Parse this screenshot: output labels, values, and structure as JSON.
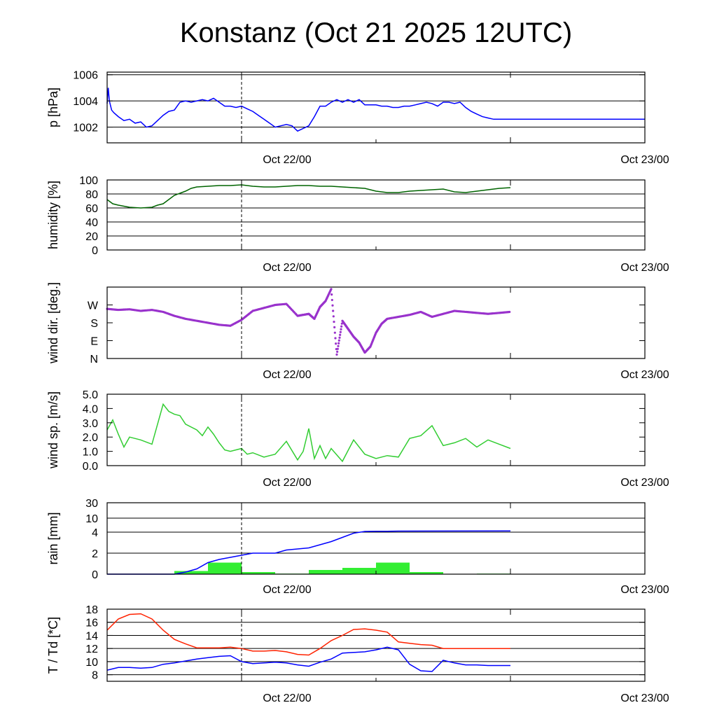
{
  "title": "Konstanz (Oct 21 2025 12UTC)",
  "chart_data": [
    {
      "type": "line",
      "ylabel": "p [hPa]",
      "xlim": [
        -12,
        36
      ],
      "xticks": [
        "Oct 22/00",
        "Oct 23/00"
      ],
      "ylim": [
        1000.8,
        1006.2
      ],
      "yticks": [
        "1006",
        "1004",
        "1002"
      ],
      "grid": true,
      "color": "#0000ff",
      "series": [
        {
          "x": [
            -12,
            -11.9,
            -11.8,
            -11.6,
            -11.4,
            -11.0,
            -10.5,
            -10.0,
            -9.5,
            -9.0,
            -8.5,
            -8.0,
            -7.5,
            -7.0,
            -6.5,
            -6.0,
            -5.5,
            -5.0,
            -4.5,
            -4.0,
            -3.5,
            -3.0,
            -2.5,
            -2.0,
            -1.5,
            -1.0,
            -0.5,
            0,
            0.5,
            1.0,
            1.5,
            2.0,
            2.5,
            3.0,
            3.5,
            4.0,
            4.5,
            5.0,
            5.5,
            6.0,
            6.5,
            7.0,
            7.5,
            8.0,
            8.5,
            9.0,
            9.5,
            10.0,
            10.5,
            11.0,
            11.5,
            12.0,
            12.5,
            13.0,
            13.5,
            14.0,
            14.5,
            15.0,
            15.5,
            16.0,
            16.5,
            17.0,
            17.5,
            18.0,
            18.5,
            19.0,
            19.5,
            20.0,
            20.5,
            21.0,
            21.5,
            22.0,
            22.5,
            23.0,
            23.5,
            24.0,
            24.5,
            25.0,
            25.5,
            26.0,
            26.5,
            27.0,
            27.5,
            28.0,
            28.5,
            29.0,
            29.5,
            30.0,
            30.5,
            31.0,
            31.5,
            32.0,
            32.5,
            33.0,
            33.5,
            34.0,
            34.5,
            35.0,
            35.5,
            36.0
          ],
          "y": [
            1003.8,
            1005.0,
            1004.0,
            1003.3,
            1003.1,
            1002.8,
            1002.5,
            1002.6,
            1002.3,
            1002.4,
            1002.0,
            1002.1,
            1002.5,
            1002.9,
            1003.2,
            1003.3,
            1003.9,
            1004.0,
            1003.9,
            1004.0,
            1004.1,
            1004.0,
            1004.2,
            1003.9,
            1003.6,
            1003.6,
            1003.5,
            1003.6,
            1003.4,
            1003.2,
            1002.9,
            1002.6,
            1002.3,
            1002.0,
            1002.1,
            1002.2,
            1002.1,
            1001.7,
            1001.9,
            1002.1,
            1002.8,
            1003.6,
            1003.6,
            1003.9,
            1004.1,
            1003.9,
            1004.1,
            1003.9,
            1004.1,
            1003.7,
            1003.7,
            1003.7,
            1003.6,
            1003.6,
            1003.5,
            1003.5,
            1003.6,
            1003.6,
            1003.7,
            1003.8,
            1003.9,
            1003.8,
            1003.6,
            1003.9,
            1003.9,
            1003.8,
            1003.9,
            1003.5,
            1003.2,
            1003.0,
            1002.8,
            1002.7,
            1002.6,
            1002.6,
            1002.6,
            1002.6,
            1002.6,
            1002.6,
            1002.6,
            1002.6,
            1002.6,
            1002.6,
            1002.6,
            1002.6,
            1002.6,
            1002.6,
            1002.6,
            1002.6,
            1002.6,
            1002.6,
            1002.6,
            1002.6,
            1002.6,
            1002.6,
            1002.6,
            1002.6,
            1002.6,
            1002.6,
            1002.6,
            1002.6
          ]
        }
      ]
    },
    {
      "type": "line",
      "ylabel": "humidity [%]",
      "xlim": [
        -12,
        36
      ],
      "xticks": [
        "Oct 22/00",
        "Oct 23/00"
      ],
      "ylim": [
        0,
        100
      ],
      "yticks": [
        "100",
        "80",
        "60",
        "40",
        "20",
        "0"
      ],
      "grid": true,
      "color": "#006400",
      "series": [
        {
          "x": [
            -12,
            -11.5,
            -11.0,
            -10.0,
            -9.0,
            -8.0,
            -7.5,
            -7.0,
            -6.5,
            -6.0,
            -5.5,
            -5.0,
            -4.5,
            -4.0,
            -3.0,
            -2.0,
            -1.0,
            0,
            1.0,
            2.0,
            3.0,
            4.0,
            5.0,
            6.0,
            7.0,
            8.0,
            9.0,
            10.0,
            11.0,
            12.0,
            13.0,
            14.0,
            15.0,
            16.0,
            17.0,
            18.0,
            19.0,
            20.0,
            21.0,
            22.0,
            23.0,
            24.0
          ],
          "y": [
            72,
            66,
            64,
            61,
            60,
            61,
            64,
            66,
            72,
            78,
            81,
            84,
            88,
            90,
            91,
            92,
            92,
            93,
            91,
            90,
            90,
            91,
            92,
            92,
            91,
            91,
            90,
            89,
            88,
            84,
            82,
            82,
            84,
            85,
            86,
            87,
            83,
            82,
            84,
            86,
            88,
            89
          ]
        }
      ]
    },
    {
      "type": "scatter",
      "ylabel": "wind dir. [deg.]",
      "xlim": [
        -12,
        36
      ],
      "xticks": [
        "Oct 22/00",
        "Oct 23/00"
      ],
      "ylim": [
        0,
        360
      ],
      "yticks": [
        "W",
        "S",
        "E",
        "N"
      ],
      "ytick_values": [
        270,
        180,
        90,
        0
      ],
      "grid": false,
      "color": "#9932cc",
      "series": [
        {
          "x": [
            -12,
            -11.0,
            -10.0,
            -9.0,
            -8.0,
            -7.0,
            -6.0,
            -5.0,
            -4.0,
            -3.0,
            -2.0,
            -1.0,
            0,
            1.0,
            2.0,
            3.0,
            4.0,
            5.0,
            5.5,
            6.0,
            6.5,
            7.0,
            7.5,
            8.0,
            8.5,
            9.0,
            9.5,
            10.0,
            10.5,
            11.0,
            11.5,
            12.0,
            12.5,
            13.0,
            14.0,
            15.0,
            16.0,
            17.0,
            18.0,
            19.0,
            20.0,
            21.0,
            22.0,
            23.0,
            24.0
          ],
          "y": [
            250,
            245,
            248,
            240,
            245,
            235,
            215,
            200,
            190,
            180,
            170,
            165,
            195,
            240,
            255,
            270,
            275,
            215,
            220,
            225,
            200,
            260,
            290,
            350,
            20,
            190,
            150,
            110,
            80,
            30,
            60,
            130,
            175,
            200,
            210,
            220,
            235,
            210,
            225,
            240,
            235,
            230,
            225,
            230,
            235
          ]
        }
      ]
    },
    {
      "type": "line",
      "ylabel": "wind sp. [m/s]",
      "xlim": [
        -12,
        36
      ],
      "xticks": [
        "Oct 22/00",
        "Oct 23/00"
      ],
      "ylim": [
        0,
        5
      ],
      "yticks": [
        "5.0",
        "4.0",
        "3.0",
        "2.0",
        "1.0",
        "0.0"
      ],
      "grid": false,
      "color": "#32cd32",
      "series": [
        {
          "x": [
            -12,
            -11.5,
            -11.0,
            -10.5,
            -10.0,
            -9.0,
            -8.0,
            -7.0,
            -6.5,
            -6.0,
            -5.5,
            -5.0,
            -4.0,
            -3.5,
            -3.0,
            -2.5,
            -2.0,
            -1.5,
            -1.0,
            0,
            0.5,
            1.0,
            2.0,
            3.0,
            4.0,
            5.0,
            5.5,
            6.0,
            6.5,
            7.0,
            7.5,
            8.0,
            9.0,
            10.0,
            11.0,
            12.0,
            13.0,
            14.0,
            15.0,
            16.0,
            17.0,
            18.0,
            19.0,
            20.0,
            21.0,
            22.0,
            23.0,
            24.0
          ],
          "y": [
            2.5,
            3.2,
            2.2,
            1.3,
            2.0,
            1.8,
            1.5,
            4.3,
            3.8,
            3.6,
            3.5,
            2.9,
            2.5,
            2.1,
            2.7,
            2.2,
            1.6,
            1.1,
            1.0,
            1.2,
            0.8,
            0.9,
            0.6,
            0.8,
            1.7,
            0.4,
            1.0,
            2.6,
            0.5,
            1.4,
            0.5,
            1.2,
            0.3,
            1.8,
            0.8,
            0.5,
            0.7,
            0.6,
            1.9,
            2.1,
            2.8,
            1.4,
            1.6,
            1.9,
            1.3,
            1.8,
            1.5,
            1.2
          ]
        }
      ]
    },
    {
      "type": "bar",
      "ylabel": "rain [mm]",
      "xlim": [
        -12,
        36
      ],
      "xticks": [
        "Oct 22/00",
        "Oct 23/00"
      ],
      "ylim": [
        0,
        30
      ],
      "yticks": [
        "30",
        "10",
        "4",
        "2",
        "0"
      ],
      "scale": "log-like",
      "grid": true,
      "bar_color": "#33ee33",
      "line_color": "#0000ff",
      "bars": {
        "x_start": [
          -12,
          -6,
          -3,
          0,
          3,
          6,
          9,
          12,
          15,
          18,
          21
        ],
        "values": [
          0,
          0.3,
          1.1,
          0.2,
          0.05,
          0.4,
          0.6,
          1.1,
          0.2,
          0,
          0.05
        ]
      },
      "series": [
        {
          "x": [
            -12,
            -6,
            -5,
            -4,
            -3,
            -2,
            -1,
            0,
            1,
            2,
            3,
            4,
            5,
            6,
            7,
            8,
            9,
            10,
            11,
            12,
            13,
            14,
            24
          ],
          "y": [
            0,
            0,
            0.2,
            0.5,
            1.1,
            1.4,
            1.6,
            1.8,
            2.0,
            2.0,
            2.0,
            2.3,
            2.4,
            2.5,
            2.8,
            3.1,
            3.5,
            3.9,
            4.3,
            4.4,
            4.4,
            4.45,
            4.5
          ]
        }
      ]
    },
    {
      "type": "line",
      "ylabel": "T / Td [*C]",
      "xlim": [
        -12,
        36
      ],
      "xticks": [
        "Oct 22/00",
        "Oct 23/00"
      ],
      "ylim": [
        7,
        18
      ],
      "yticks": [
        "18",
        "16",
        "14",
        "12",
        "10",
        "8"
      ],
      "grid": true,
      "series": [
        {
          "color": "#ff2200",
          "x": [
            -12,
            -11.0,
            -10.0,
            -9.0,
            -8.0,
            -7.0,
            -6.0,
            -5.0,
            -4.0,
            -3.0,
            -2.0,
            -1.0,
            0,
            1.0,
            2.0,
            3.0,
            4.0,
            5.0,
            6.0,
            7.0,
            8.0,
            9.0,
            10.0,
            11.0,
            12.0,
            13.0,
            14.0,
            15.0,
            16.0,
            17.0,
            18.0,
            19.0,
            20.0,
            21.0,
            22.0,
            23.0,
            24.0
          ],
          "y": [
            14.8,
            16.5,
            17.2,
            17.3,
            16.5,
            14.8,
            13.4,
            12.7,
            12.1,
            12.1,
            12.1,
            12.2,
            12.0,
            11.6,
            11.6,
            11.7,
            11.5,
            11.1,
            11.0,
            12.0,
            13.2,
            14.0,
            14.9,
            15.0,
            14.8,
            14.5,
            13.0,
            12.8,
            12.6,
            12.5,
            12.0,
            12.0,
            12.0,
            12.0,
            12.0,
            12.0,
            12.0
          ]
        },
        {
          "color": "#0000ff",
          "x": [
            -12,
            -11.0,
            -10.0,
            -9.0,
            -8.0,
            -7.0,
            -6.0,
            -5.0,
            -4.0,
            -3.0,
            -2.0,
            -1.0,
            0,
            1.0,
            2.0,
            3.0,
            4.0,
            5.0,
            6.0,
            7.0,
            8.0,
            9.0,
            10.0,
            11.0,
            12.0,
            13.0,
            14.0,
            15.0,
            16.0,
            17.0,
            18.0,
            19.0,
            20.0,
            21.0,
            22.0,
            23.0,
            24.0
          ],
          "y": [
            8.7,
            9.1,
            9.1,
            9.0,
            9.1,
            9.6,
            9.8,
            10.1,
            10.4,
            10.6,
            10.8,
            10.9,
            10.0,
            9.7,
            9.8,
            9.9,
            9.8,
            9.5,
            9.3,
            9.9,
            10.4,
            11.3,
            11.4,
            11.5,
            11.8,
            12.2,
            11.8,
            9.6,
            8.6,
            8.5,
            10.2,
            9.8,
            9.5,
            9.5,
            9.4,
            9.4,
            9.4
          ]
        }
      ]
    }
  ]
}
